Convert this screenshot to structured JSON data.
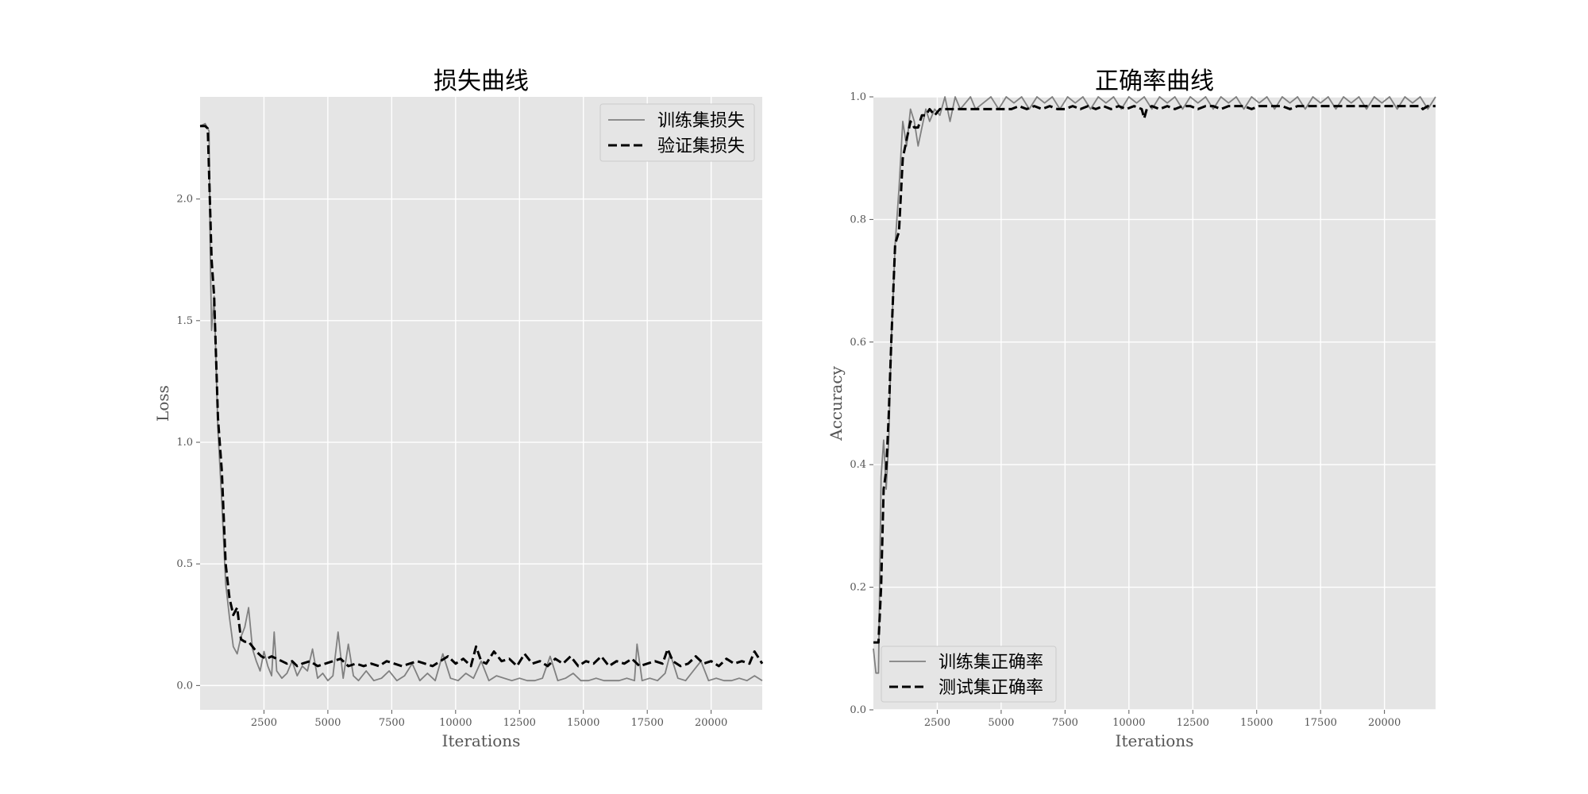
{
  "chart_data": [
    {
      "type": "line",
      "title": "损失曲线",
      "xlabel": "Iterations",
      "ylabel": "Loss",
      "xlim": [
        0,
        22000
      ],
      "ylim": [
        -0.1,
        2.42
      ],
      "xticks": [
        2500,
        5000,
        7500,
        10000,
        12500,
        15000,
        17500,
        20000
      ],
      "xtick_labels": [
        "2500",
        "5000",
        "7500",
        "10000",
        "12500",
        "15000",
        "17500",
        "20000"
      ],
      "yticks": [
        0.0,
        0.5,
        1.0,
        1.5,
        2.0
      ],
      "ytick_labels": [
        "0.0",
        "0.5",
        "1.0",
        "1.5",
        "2.0"
      ],
      "grid": true,
      "legend_position": "top-right",
      "series": [
        {
          "name": "训练集损失",
          "color": "#808080",
          "style": "solid",
          "x": [
            0,
            200,
            350,
            400,
            450,
            550,
            700,
            850,
            1000,
            1150,
            1300,
            1450,
            1600,
            1750,
            1900,
            2050,
            2200,
            2350,
            2500,
            2650,
            2800,
            2900,
            3000,
            3200,
            3400,
            3600,
            3800,
            4000,
            4200,
            4400,
            4600,
            4800,
            5000,
            5200,
            5400,
            5600,
            5800,
            6000,
            6200,
            6500,
            6800,
            7100,
            7400,
            7700,
            8000,
            8300,
            8600,
            8900,
            9200,
            9500,
            9800,
            10100,
            10400,
            10700,
            11000,
            11300,
            11600,
            11900,
            12200,
            12500,
            12800,
            13100,
            13400,
            13700,
            14000,
            14300,
            14600,
            14900,
            15200,
            15500,
            15800,
            16100,
            16400,
            16700,
            17000,
            17100,
            17300,
            17600,
            17900,
            18200,
            18400,
            18700,
            19000,
            19300,
            19600,
            19900,
            20200,
            20500,
            20800,
            21100,
            21400,
            21700,
            22000
          ],
          "y": [
            2.3,
            2.31,
            2.28,
            1.75,
            1.46,
            1.6,
            1.05,
            0.75,
            0.42,
            0.28,
            0.16,
            0.13,
            0.2,
            0.24,
            0.32,
            0.15,
            0.1,
            0.06,
            0.14,
            0.08,
            0.04,
            0.22,
            0.06,
            0.03,
            0.05,
            0.1,
            0.04,
            0.08,
            0.06,
            0.15,
            0.03,
            0.05,
            0.02,
            0.04,
            0.22,
            0.03,
            0.17,
            0.04,
            0.02,
            0.06,
            0.02,
            0.03,
            0.06,
            0.02,
            0.04,
            0.09,
            0.02,
            0.05,
            0.02,
            0.13,
            0.03,
            0.02,
            0.05,
            0.03,
            0.1,
            0.02,
            0.04,
            0.03,
            0.02,
            0.03,
            0.02,
            0.02,
            0.03,
            0.12,
            0.02,
            0.03,
            0.05,
            0.02,
            0.02,
            0.03,
            0.02,
            0.02,
            0.02,
            0.03,
            0.02,
            0.17,
            0.02,
            0.03,
            0.02,
            0.05,
            0.13,
            0.03,
            0.02,
            0.06,
            0.1,
            0.02,
            0.03,
            0.02,
            0.02,
            0.03,
            0.02,
            0.04,
            0.02
          ]
        },
        {
          "name": "验证集损失",
          "color": "#000000",
          "style": "dashed",
          "x": [
            0,
            200,
            300,
            450,
            550,
            700,
            850,
            1000,
            1150,
            1300,
            1450,
            1600,
            1750,
            1900,
            2050,
            2200,
            2400,
            2600,
            2800,
            3000,
            3200,
            3400,
            3600,
            3800,
            4000,
            4300,
            4600,
            4900,
            5200,
            5500,
            5800,
            6100,
            6400,
            6700,
            7000,
            7300,
            7600,
            7900,
            8200,
            8500,
            8800,
            9100,
            9400,
            9700,
            10000,
            10300,
            10600,
            10800,
            11000,
            11200,
            11500,
            11800,
            12100,
            12400,
            12700,
            13000,
            13300,
            13600,
            13900,
            14200,
            14500,
            14800,
            15100,
            15400,
            15700,
            16000,
            16300,
            16600,
            16900,
            17200,
            17500,
            17800,
            18100,
            18300,
            18500,
            18800,
            19100,
            19400,
            19700,
            20000,
            20300,
            20600,
            20900,
            21200,
            21500,
            21700,
            22000
          ],
          "y": [
            2.3,
            2.3,
            2.29,
            1.75,
            1.6,
            1.1,
            0.88,
            0.5,
            0.36,
            0.29,
            0.32,
            0.19,
            0.18,
            0.18,
            0.16,
            0.14,
            0.12,
            0.11,
            0.12,
            0.11,
            0.1,
            0.09,
            0.1,
            0.08,
            0.09,
            0.1,
            0.08,
            0.09,
            0.1,
            0.11,
            0.08,
            0.09,
            0.08,
            0.09,
            0.08,
            0.1,
            0.09,
            0.08,
            0.09,
            0.1,
            0.09,
            0.08,
            0.1,
            0.12,
            0.09,
            0.11,
            0.08,
            0.16,
            0.1,
            0.09,
            0.14,
            0.1,
            0.11,
            0.08,
            0.13,
            0.09,
            0.1,
            0.08,
            0.11,
            0.09,
            0.12,
            0.08,
            0.1,
            0.09,
            0.12,
            0.08,
            0.1,
            0.09,
            0.11,
            0.08,
            0.09,
            0.1,
            0.09,
            0.15,
            0.1,
            0.08,
            0.09,
            0.12,
            0.09,
            0.1,
            0.08,
            0.11,
            0.09,
            0.1,
            0.09,
            0.14,
            0.09
          ]
        }
      ]
    },
    {
      "type": "line",
      "title": "正确率曲线",
      "xlabel": "Iterations",
      "ylabel": "Accuracy",
      "xlim": [
        0,
        22000
      ],
      "ylim": [
        0.0,
        1.0
      ],
      "xticks": [
        2500,
        5000,
        7500,
        10000,
        12500,
        15000,
        17500,
        20000
      ],
      "xtick_labels": [
        "2500",
        "5000",
        "7500",
        "10000",
        "12500",
        "15000",
        "17500",
        "20000"
      ],
      "yticks": [
        0.0,
        0.2,
        0.4,
        0.6,
        0.8,
        1.0
      ],
      "ytick_labels": [
        "0.0",
        "0.2",
        "0.4",
        "0.6",
        "0.8",
        "1.0"
      ],
      "grid": true,
      "legend_position": "bottom-left",
      "series": [
        {
          "name": "训练集正确率",
          "color": "#808080",
          "style": "solid",
          "x": [
            0,
            100,
            200,
            300,
            400,
            500,
            600,
            700,
            850,
            1000,
            1150,
            1300,
            1450,
            1600,
            1750,
            1900,
            2050,
            2200,
            2400,
            2600,
            2800,
            3000,
            3200,
            3400,
            3600,
            3800,
            4000,
            4300,
            4600,
            4900,
            5200,
            5500,
            5800,
            6100,
            6400,
            6700,
            7000,
            7300,
            7600,
            7900,
            8200,
            8500,
            8800,
            9100,
            9400,
            9700,
            10000,
            10300,
            10600,
            10900,
            11200,
            11500,
            11800,
            12100,
            12400,
            12700,
            13000,
            13300,
            13600,
            13900,
            14200,
            14500,
            14800,
            15100,
            15400,
            15700,
            16000,
            16300,
            16600,
            16900,
            17200,
            17500,
            17800,
            18100,
            18400,
            18700,
            19000,
            19300,
            19600,
            19900,
            20200,
            20500,
            20800,
            21100,
            21400,
            21700,
            22000
          ],
          "y": [
            0.1,
            0.06,
            0.06,
            0.38,
            0.44,
            0.36,
            0.44,
            0.6,
            0.76,
            0.85,
            0.96,
            0.92,
            0.98,
            0.96,
            0.92,
            0.95,
            0.98,
            0.96,
            0.98,
            0.97,
            1.0,
            0.96,
            1.0,
            0.98,
            0.99,
            1.0,
            0.98,
            0.99,
            1.0,
            0.98,
            1.0,
            0.99,
            1.0,
            0.98,
            1.0,
            0.99,
            1.0,
            0.98,
            1.0,
            0.99,
            1.0,
            0.98,
            1.0,
            0.99,
            1.0,
            0.98,
            1.0,
            0.99,
            1.0,
            0.98,
            1.0,
            0.99,
            1.0,
            0.98,
            1.0,
            0.99,
            1.0,
            0.98,
            1.0,
            0.99,
            1.0,
            0.98,
            1.0,
            0.99,
            1.0,
            0.98,
            1.0,
            0.99,
            1.0,
            0.98,
            1.0,
            0.99,
            1.0,
            0.98,
            1.0,
            0.99,
            1.0,
            0.98,
            1.0,
            0.99,
            1.0,
            0.98,
            1.0,
            0.99,
            1.0,
            0.98,
            1.0
          ]
        },
        {
          "name": "测试集正确率",
          "color": "#000000",
          "style": "dashed",
          "x": [
            0,
            200,
            300,
            400,
            500,
            600,
            700,
            850,
            1000,
            1150,
            1300,
            1450,
            1600,
            1750,
            1900,
            2050,
            2200,
            2400,
            2600,
            2800,
            3000,
            3300,
            3600,
            3900,
            4200,
            4500,
            4800,
            5100,
            5400,
            5700,
            6000,
            6300,
            6600,
            6900,
            7200,
            7500,
            7800,
            8100,
            8400,
            8700,
            9000,
            9300,
            9600,
            9900,
            10200,
            10500,
            10600,
            10700,
            10900,
            11200,
            11500,
            11800,
            12100,
            12400,
            12700,
            13000,
            13300,
            13600,
            13900,
            14200,
            14500,
            14800,
            15100,
            15400,
            15700,
            16000,
            16300,
            16600,
            16900,
            17200,
            17500,
            17800,
            18100,
            18400,
            18700,
            19000,
            19300,
            19600,
            19900,
            20200,
            20500,
            20800,
            21100,
            21400,
            21500,
            21700,
            22000
          ],
          "y": [
            0.11,
            0.11,
            0.2,
            0.36,
            0.39,
            0.48,
            0.6,
            0.76,
            0.78,
            0.9,
            0.93,
            0.96,
            0.95,
            0.95,
            0.97,
            0.97,
            0.98,
            0.97,
            0.98,
            0.98,
            0.98,
            0.98,
            0.98,
            0.98,
            0.98,
            0.98,
            0.98,
            0.98,
            0.98,
            0.985,
            0.98,
            0.985,
            0.98,
            0.985,
            0.98,
            0.98,
            0.985,
            0.98,
            0.985,
            0.98,
            0.985,
            0.98,
            0.985,
            0.98,
            0.985,
            0.98,
            0.965,
            0.98,
            0.985,
            0.98,
            0.985,
            0.98,
            0.985,
            0.985,
            0.98,
            0.985,
            0.985,
            0.98,
            0.985,
            0.985,
            0.985,
            0.98,
            0.985,
            0.985,
            0.985,
            0.985,
            0.98,
            0.985,
            0.985,
            0.985,
            0.985,
            0.985,
            0.985,
            0.985,
            0.985,
            0.985,
            0.985,
            0.985,
            0.985,
            0.985,
            0.985,
            0.985,
            0.985,
            0.985,
            0.98,
            0.985,
            0.985
          ]
        }
      ]
    }
  ]
}
